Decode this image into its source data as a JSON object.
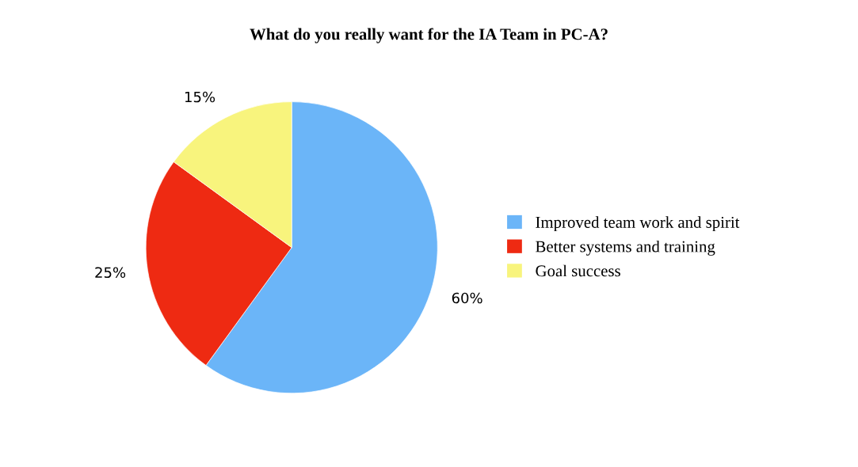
{
  "chart_data": {
    "type": "pie",
    "title": "What do you really want for the IA Team in PC-A?",
    "categories": [
      "Improved team work and spirit",
      "Better systems and training",
      "Goal success"
    ],
    "values": [
      60,
      25,
      15
    ],
    "colors": [
      "#6bb5f8",
      "#ee2a12",
      "#f8f47d"
    ],
    "value_labels": [
      "60%",
      "25%",
      "15%"
    ],
    "legend": "right"
  }
}
